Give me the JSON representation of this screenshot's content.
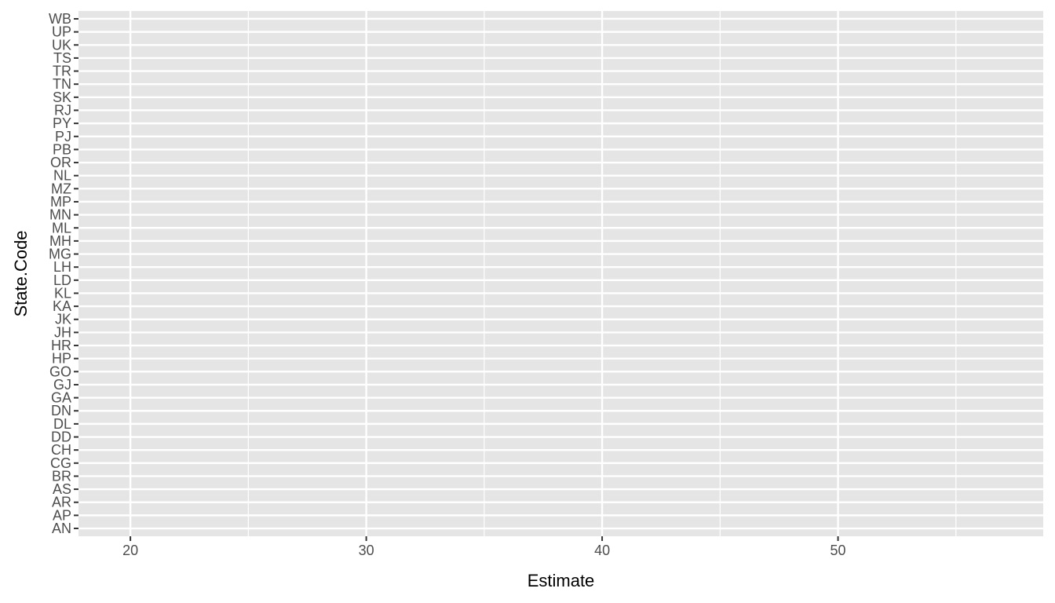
{
  "chart_data": {
    "type": "scatter",
    "title": "",
    "xlabel": "Estimate",
    "ylabel": "State.Code",
    "xlim": [
      17.8,
      58.7
    ],
    "x_ticks": [
      20,
      30,
      40,
      50
    ],
    "x_tick_labels": [
      "20",
      "30",
      "40",
      "50"
    ],
    "categories": [
      "AN",
      "AP",
      "AR",
      "AS",
      "BR",
      "CG",
      "CH",
      "DD",
      "DL",
      "DN",
      "GA",
      "GJ",
      "GO",
      "HP",
      "HR",
      "JH",
      "JK",
      "KA",
      "KL",
      "LD",
      "LH",
      "MG",
      "MH",
      "ML",
      "MN",
      "MP",
      "MZ",
      "NL",
      "OR",
      "PB",
      "PJ",
      "PY",
      "RJ",
      "SK",
      "TN",
      "TR",
      "TS",
      "UK",
      "UP",
      "WB"
    ],
    "series": [],
    "grid": true,
    "panel_background": "#e5e5e5",
    "grid_color": "#ffffff"
  }
}
